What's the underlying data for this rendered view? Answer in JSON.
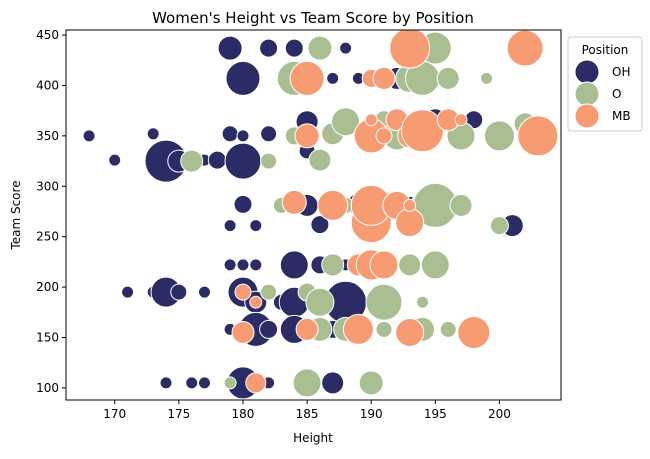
{
  "chart_data": {
    "type": "scatter",
    "title": "Women's Height vs Team Score by Position",
    "xlabel": "Height",
    "ylabel": "Team Score",
    "xlim": [
      166.2,
      204.8
    ],
    "ylim": [
      88,
      455
    ],
    "xticks": [
      170,
      175,
      180,
      185,
      190,
      195,
      200
    ],
    "yticks": [
      100,
      150,
      200,
      250,
      300,
      350,
      400,
      450
    ],
    "grid": false,
    "size_encoding": "marker area varies per point",
    "legend": {
      "title": "Position",
      "placement": "outside upper right",
      "entries": [
        "OH",
        "O",
        "MB"
      ]
    },
    "series": [
      {
        "name": "OH",
        "color": "#2b2c66",
        "points": [
          [
            179,
            437,
            12
          ],
          [
            182,
            437,
            9
          ],
          [
            184,
            437,
            9
          ],
          [
            188,
            437,
            6
          ],
          [
            180,
            407,
            17
          ],
          [
            187,
            407,
            6
          ],
          [
            189,
            407,
            6
          ],
          [
            192,
            407,
            11
          ],
          [
            168,
            350,
            6
          ],
          [
            173,
            352,
            6
          ],
          [
            179,
            352,
            8
          ],
          [
            180,
            350,
            6
          ],
          [
            182,
            352,
            8
          ],
          [
            185,
            364,
            11
          ],
          [
            188,
            364,
            12
          ],
          [
            191,
            364,
            9
          ],
          [
            195,
            366,
            11
          ],
          [
            198,
            366,
            9
          ],
          [
            170,
            326,
            6
          ],
          [
            174,
            325,
            21
          ],
          [
            175,
            325,
            11
          ],
          [
            177,
            326,
            6
          ],
          [
            178,
            326,
            9
          ],
          [
            180,
            325,
            18
          ],
          [
            185,
            335,
            8
          ],
          [
            180,
            282,
            9
          ],
          [
            183,
            281,
            8
          ],
          [
            185,
            281,
            11
          ],
          [
            186,
            262,
            9
          ],
          [
            187,
            281,
            9
          ],
          [
            189,
            282,
            11
          ],
          [
            193,
            282,
            8
          ],
          [
            201,
            261,
            11
          ],
          [
            179,
            261,
            6
          ],
          [
            181,
            261,
            6
          ],
          [
            179,
            222,
            6
          ],
          [
            180,
            222,
            6
          ],
          [
            181,
            222,
            6
          ],
          [
            184,
            222,
            14
          ],
          [
            186,
            222,
            9
          ],
          [
            188,
            222,
            6
          ],
          [
            189,
            222,
            11
          ],
          [
            171,
            195,
            6
          ],
          [
            173,
            195,
            6
          ],
          [
            174,
            195,
            15
          ],
          [
            175,
            195,
            8
          ],
          [
            177,
            195,
            6
          ],
          [
            180,
            195,
            15
          ],
          [
            181,
            185,
            11
          ],
          [
            183,
            185,
            8
          ],
          [
            184,
            185,
            15
          ],
          [
            185,
            196,
            8
          ],
          [
            186,
            185,
            12
          ],
          [
            188,
            185,
            21
          ],
          [
            179,
            158,
            6
          ],
          [
            181,
            158,
            17
          ],
          [
            182,
            158,
            9
          ],
          [
            184,
            158,
            14
          ],
          [
            187,
            158,
            9
          ],
          [
            174,
            105,
            6
          ],
          [
            176,
            105,
            6
          ],
          [
            177,
            105,
            6
          ],
          [
            180,
            105,
            16
          ],
          [
            181,
            105,
            9
          ],
          [
            182,
            105,
            6
          ],
          [
            187,
            105,
            11
          ]
        ]
      },
      {
        "name": "O",
        "color": "#a9bf92",
        "points": [
          [
            186,
            437,
            12
          ],
          [
            193,
            437,
            11
          ],
          [
            195,
            437,
            16
          ],
          [
            184,
            407,
            17
          ],
          [
            191,
            407,
            11
          ],
          [
            193,
            407,
            14
          ],
          [
            194,
            407,
            17
          ],
          [
            196,
            407,
            11
          ],
          [
            199,
            407,
            6
          ],
          [
            184,
            350,
            9
          ],
          [
            187,
            352,
            11
          ],
          [
            188,
            364,
            14
          ],
          [
            191,
            366,
            9
          ],
          [
            192,
            350,
            14
          ],
          [
            197,
            350,
            14
          ],
          [
            200,
            350,
            15
          ],
          [
            202,
            362,
            11
          ],
          [
            182,
            325,
            8
          ],
          [
            186,
            326,
            11
          ],
          [
            176,
            325,
            11
          ],
          [
            183,
            281,
            8
          ],
          [
            188,
            281,
            8
          ],
          [
            190,
            281,
            16
          ],
          [
            191,
            281,
            14
          ],
          [
            194,
            281,
            12
          ],
          [
            195,
            281,
            22
          ],
          [
            197,
            281,
            11
          ],
          [
            200,
            261,
            9
          ],
          [
            187,
            222,
            11
          ],
          [
            193,
            222,
            11
          ],
          [
            195,
            222,
            14
          ],
          [
            182,
            195,
            8
          ],
          [
            185,
            195,
            9
          ],
          [
            186,
            185,
            14
          ],
          [
            191,
            185,
            18
          ],
          [
            194,
            185,
            6
          ],
          [
            186,
            158,
            12
          ],
          [
            188,
            158,
            12
          ],
          [
            191,
            158,
            8
          ],
          [
            194,
            158,
            12
          ],
          [
            196,
            158,
            8
          ],
          [
            179,
            105,
            6
          ],
          [
            185,
            105,
            14
          ],
          [
            190,
            105,
            12
          ]
        ]
      },
      {
        "name": "MB",
        "color": "#f79b73",
        "points": [
          [
            193,
            437,
            20
          ],
          [
            202,
            437,
            18
          ],
          [
            185,
            407,
            17
          ],
          [
            190,
            407,
            9
          ],
          [
            191,
            407,
            11
          ],
          [
            185,
            350,
            12
          ],
          [
            190,
            350,
            17
          ],
          [
            190,
            366,
            6
          ],
          [
            191,
            350,
            8
          ],
          [
            192,
            366,
            11
          ],
          [
            193,
            350,
            12
          ],
          [
            194,
            355,
            21
          ],
          [
            196,
            366,
            11
          ],
          [
            197,
            366,
            6
          ],
          [
            203,
            350,
            20
          ],
          [
            184,
            284,
            12
          ],
          [
            187,
            281,
            15
          ],
          [
            190,
            264,
            20
          ],
          [
            190,
            281,
            20
          ],
          [
            192,
            281,
            14
          ],
          [
            193,
            264,
            14
          ],
          [
            193,
            281,
            6
          ],
          [
            189,
            222,
            11
          ],
          [
            190,
            222,
            15
          ],
          [
            191,
            222,
            14
          ],
          [
            180,
            195,
            8
          ],
          [
            181,
            185,
            6
          ],
          [
            180,
            155,
            11
          ],
          [
            185,
            158,
            11
          ],
          [
            189,
            158,
            15
          ],
          [
            193,
            155,
            14
          ],
          [
            198,
            155,
            16
          ],
          [
            181,
            105,
            10
          ]
        ]
      }
    ]
  }
}
